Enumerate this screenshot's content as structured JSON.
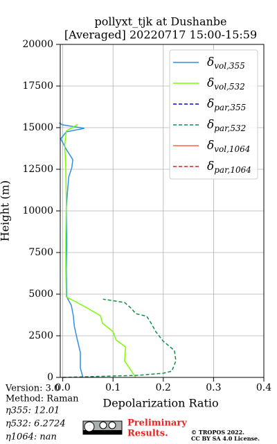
{
  "chart_data": {
    "type": "line",
    "title": "pollyxt_tjk at Dushanbe",
    "subtitle": "[Averaged] 20220717 15:00-15:59",
    "x_label": "Depolarization Ratio",
    "y_label": "Height (m)",
    "xlim": [
      -0.005,
      0.4
    ],
    "ylim": [
      0,
      20000
    ],
    "xticks": [
      {
        "value": 0,
        "label": "0.0"
      },
      {
        "value": 0.1,
        "label": "0.1"
      },
      {
        "value": 0.2,
        "label": "0.2"
      },
      {
        "value": 0.3,
        "label": "0.3"
      },
      {
        "value": 0.4,
        "label": "0.4"
      }
    ],
    "yticks": [
      0,
      2500,
      5000,
      7500,
      10000,
      12500,
      15000,
      17500,
      20000
    ],
    "grid": true,
    "legend": "upper right",
    "series": [
      {
        "name": {
          "symbol": "δ",
          "sub": "vol,355"
        },
        "color": "#2f8fe3",
        "dash": false,
        "values": [
          0.04,
          0.035,
          0.035,
          0.029,
          0.023,
          0.021,
          0.017,
          0.008,
          0.007,
          0.008,
          0.007,
          0.01,
          0.012,
          0.018,
          0.02,
          0.007,
          -0.004,
          0.007,
          0.043,
          -0.001,
          -0.007
        ],
        "heights": [
          0,
          580,
          1500,
          2250,
          3080,
          3700,
          4330,
          4830,
          6500,
          8000,
          10170,
          11400,
          12040,
          12600,
          13080,
          13700,
          14330,
          14750,
          14960,
          15170,
          15290
        ]
      },
      {
        "name": {
          "symbol": "δ",
          "sub": "vol,532"
        },
        "color": "#7cfc00",
        "dash": false,
        "values": [
          0.145,
          0.123,
          0.125,
          0.106,
          0.1,
          0.079,
          0.075,
          0.051,
          0.026,
          0.007,
          0.006,
          0.006,
          0.007,
          0.006,
          0.004,
          0.007,
          0.03
        ],
        "heights": [
          0,
          1000,
          1830,
          2250,
          2750,
          3250,
          3700,
          4125,
          4540,
          4830,
          6500,
          8500,
          10500,
          12500,
          14000,
          14800,
          15200
        ]
      },
      {
        "name": {
          "symbol": "δ",
          "sub": "par,355"
        },
        "color": "#0000cd",
        "dash": true,
        "values": [],
        "heights": []
      },
      {
        "name": {
          "symbol": "δ",
          "sub": "par,532"
        },
        "color": "#138a46",
        "dash": true,
        "values": [
          0,
          0.15,
          0.2,
          0.217,
          0.225,
          0.222,
          0.2,
          0.185,
          0.175,
          0.167,
          0.145,
          0.137,
          0.123,
          0.08
        ],
        "heights": [
          0,
          125,
          250,
          375,
          1000,
          1620,
          2170,
          2750,
          3290,
          3670,
          3830,
          4125,
          4500,
          4700
        ]
      },
      {
        "name": {
          "symbol": "δ",
          "sub": "vol,1064"
        },
        "color": "#ff6347",
        "dash": false,
        "values": [],
        "heights": []
      },
      {
        "name": {
          "symbol": "δ",
          "sub": "par,1064"
        },
        "color": "#d62728",
        "dash": true,
        "values": [],
        "heights": []
      }
    ]
  },
  "footer": {
    "version": "Version: 3.0",
    "method": "Method: Raman",
    "eta355": "η355:  12.01",
    "eta532": "η532: 6.2724",
    "eta1064": "η1064:    nan",
    "preliminary": [
      "Preliminary",
      "Results."
    ],
    "copyright": "© TROPOS 2022.",
    "license": "CC BY SA 4.0 License."
  }
}
